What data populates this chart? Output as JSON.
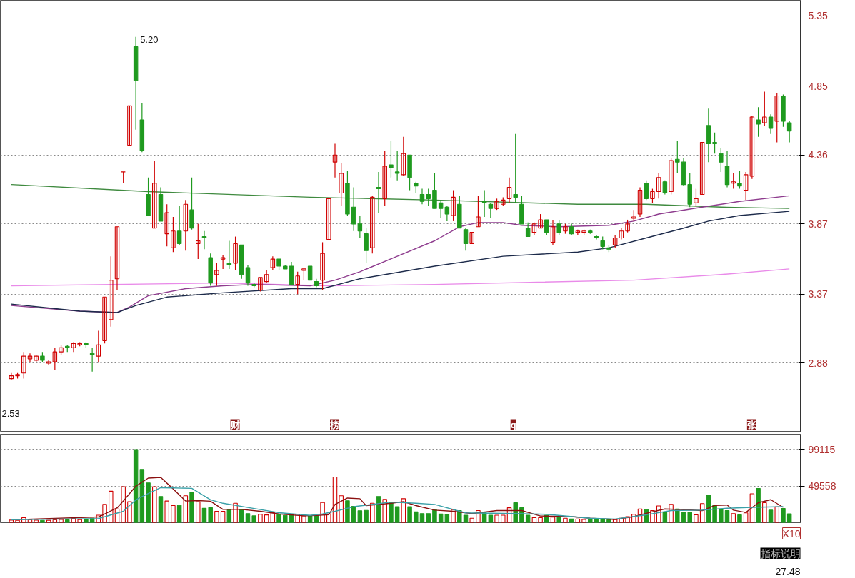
{
  "chart_data": [
    {
      "type": "candlestick",
      "categories": [
        null,
        null,
        null,
        null,
        null,
        null,
        null,
        null,
        null,
        null,
        null,
        null,
        null,
        null,
        null,
        null,
        null,
        null,
        null,
        null,
        null,
        null,
        null,
        null,
        null,
        null,
        null,
        null,
        null,
        null,
        null,
        null,
        null,
        null,
        null,
        null,
        null,
        null,
        null,
        null,
        null,
        null,
        null,
        null,
        null,
        null,
        null,
        null,
        null,
        null,
        null,
        null,
        null,
        null,
        null,
        null,
        null,
        null,
        null,
        null,
        null,
        null,
        null,
        null,
        null,
        null,
        null,
        null,
        null,
        null,
        null,
        null,
        null,
        null,
        null,
        null,
        null,
        null,
        null,
        null,
        null,
        null,
        null,
        null,
        null,
        null,
        null,
        null,
        null,
        null,
        null,
        null,
        null,
        null,
        null,
        null,
        null,
        null,
        null,
        null,
        null,
        null,
        null,
        null,
        null,
        null,
        null,
        null,
        null,
        null,
        null,
        null,
        null,
        null,
        null,
        null,
        null,
        null,
        null,
        null,
        null,
        null,
        null,
        null,
        null,
        null
      ],
      "ohlc": [
        [
          2.77,
          2.81,
          2.76,
          2.79
        ],
        [
          2.79,
          2.81,
          2.77,
          2.8
        ],
        [
          2.81,
          2.96,
          2.77,
          2.93
        ],
        [
          2.91,
          2.95,
          2.89,
          2.93
        ],
        [
          2.9,
          2.94,
          2.89,
          2.93
        ],
        [
          2.93,
          2.96,
          2.89,
          2.9
        ],
        [
          2.88,
          2.9,
          2.87,
          2.89
        ],
        [
          2.89,
          2.99,
          2.83,
          2.96
        ],
        [
          2.96,
          3.01,
          2.94,
          2.99
        ],
        [
          3.0,
          3.01,
          2.96,
          2.99
        ],
        [
          2.99,
          3.03,
          2.96,
          3.02
        ],
        [
          3.01,
          3.03,
          3.0,
          3.02
        ],
        [
          3.02,
          3.03,
          2.99,
          3.01
        ],
        [
          2.95,
          2.99,
          2.82,
          2.94
        ],
        [
          2.93,
          3.11,
          2.89,
          3.01
        ],
        [
          3.04,
          3.35,
          3.02,
          3.35
        ],
        [
          3.19,
          3.64,
          3.14,
          3.47
        ],
        [
          3.48,
          3.85,
          3.4,
          3.85
        ],
        [
          4.24,
          4.24,
          4.16,
          4.24
        ],
        [
          4.43,
          4.71,
          4.43,
          4.71
        ],
        [
          5.13,
          5.2,
          4.54,
          4.89
        ],
        [
          4.61,
          4.73,
          4.38,
          4.39
        ],
        [
          4.08,
          4.2,
          3.93,
          3.93
        ],
        [
          3.84,
          4.32,
          3.84,
          4.16
        ],
        [
          4.08,
          4.13,
          3.89,
          3.89
        ],
        [
          3.8,
          4.01,
          3.71,
          3.95
        ],
        [
          3.7,
          3.92,
          3.67,
          3.82
        ],
        [
          3.82,
          4.0,
          3.72,
          3.73
        ],
        [
          3.82,
          4.04,
          3.68,
          4.01
        ],
        [
          3.97,
          4.2,
          3.83,
          3.84
        ],
        [
          3.73,
          3.87,
          3.62,
          3.75
        ],
        [
          3.78,
          3.82,
          3.69,
          3.77
        ],
        [
          3.63,
          3.66,
          3.43,
          3.45
        ],
        [
          3.51,
          3.59,
          3.43,
          3.54
        ],
        [
          3.62,
          3.65,
          3.55,
          3.63
        ],
        [
          3.59,
          3.75,
          3.55,
          3.58
        ],
        [
          3.59,
          3.78,
          3.54,
          3.73
        ],
        [
          3.72,
          3.72,
          3.48,
          3.51
        ],
        [
          3.56,
          3.58,
          3.43,
          3.45
        ],
        [
          3.44,
          3.45,
          3.42,
          3.43
        ],
        [
          3.4,
          3.49,
          3.39,
          3.49
        ],
        [
          3.46,
          3.54,
          3.45,
          3.51
        ],
        [
          3.56,
          3.64,
          3.54,
          3.62
        ],
        [
          3.62,
          3.62,
          3.54,
          3.57
        ],
        [
          3.57,
          3.58,
          3.55,
          3.55
        ],
        [
          3.57,
          3.6,
          3.44,
          3.44
        ],
        [
          3.44,
          3.53,
          3.37,
          3.5
        ],
        [
          3.54,
          3.55,
          3.47,
          3.55
        ],
        [
          3.57,
          3.57,
          3.47,
          3.47
        ],
        [
          3.46,
          3.48,
          3.42,
          3.43
        ],
        [
          3.47,
          3.74,
          3.4,
          3.66
        ],
        [
          3.76,
          4.05,
          3.76,
          4.05
        ],
        [
          4.31,
          4.44,
          4.2,
          4.36
        ],
        [
          4.09,
          4.3,
          4.0,
          4.23
        ],
        [
          4.16,
          4.25,
          3.93,
          3.94
        ],
        [
          3.99,
          4.13,
          3.82,
          3.87
        ],
        [
          3.87,
          3.93,
          3.77,
          3.82
        ],
        [
          3.8,
          3.84,
          3.59,
          3.68
        ],
        [
          3.7,
          4.07,
          3.66,
          4.06
        ],
        [
          4.13,
          4.24,
          3.95,
          4.12
        ],
        [
          4.05,
          4.39,
          4.0,
          4.28
        ],
        [
          4.29,
          4.46,
          4.2,
          4.27
        ],
        [
          4.24,
          4.39,
          4.18,
          4.23
        ],
        [
          4.22,
          4.49,
          4.21,
          4.37
        ],
        [
          4.36,
          4.36,
          4.11,
          4.2
        ],
        [
          4.16,
          4.17,
          4.09,
          4.14
        ],
        [
          4.08,
          4.12,
          4.01,
          4.03
        ],
        [
          4.08,
          4.12,
          4.0,
          4.05
        ],
        [
          4.11,
          4.23,
          3.98,
          3.98
        ],
        [
          4.02,
          4.04,
          3.91,
          3.98
        ],
        [
          3.99,
          4.0,
          3.89,
          3.94
        ],
        [
          3.93,
          4.11,
          3.89,
          4.06
        ],
        [
          4.01,
          4.07,
          3.84,
          3.84
        ],
        [
          3.83,
          3.84,
          3.68,
          3.73
        ],
        [
          3.73,
          3.81,
          3.73,
          3.81
        ],
        [
          3.85,
          4.07,
          3.85,
          3.92
        ],
        [
          4.03,
          4.11,
          3.92,
          4.02
        ],
        [
          4.01,
          4.02,
          3.91,
          3.98
        ],
        [
          3.98,
          4.05,
          3.97,
          4.03
        ],
        [
          4.01,
          4.06,
          4.0,
          4.04
        ],
        [
          4.05,
          4.2,
          4.02,
          4.13
        ],
        [
          4.08,
          4.51,
          4.02,
          4.06
        ],
        [
          4.01,
          4.07,
          3.87,
          3.87
        ],
        [
          3.84,
          3.88,
          3.78,
          3.78
        ],
        [
          3.81,
          3.88,
          3.79,
          3.87
        ],
        [
          3.84,
          3.94,
          3.84,
          3.9
        ],
        [
          3.9,
          3.9,
          3.79,
          3.81
        ],
        [
          3.74,
          3.9,
          3.72,
          3.85
        ],
        [
          3.87,
          3.9,
          3.79,
          3.81
        ],
        [
          3.82,
          3.87,
          3.8,
          3.85
        ],
        [
          3.85,
          3.87,
          3.79,
          3.8
        ],
        [
          3.81,
          3.83,
          3.79,
          3.82
        ],
        [
          3.81,
          3.83,
          3.79,
          3.82
        ],
        [
          3.82,
          3.83,
          3.8,
          3.81
        ],
        [
          3.78,
          3.79,
          3.76,
          3.77
        ],
        [
          3.75,
          3.78,
          3.69,
          3.71
        ],
        [
          3.7,
          3.72,
          3.67,
          3.69
        ],
        [
          3.72,
          3.79,
          3.7,
          3.77
        ],
        [
          3.77,
          3.84,
          3.76,
          3.82
        ],
        [
          3.82,
          3.9,
          3.81,
          3.87
        ],
        [
          3.91,
          3.97,
          3.89,
          3.92
        ],
        [
          3.94,
          4.13,
          3.92,
          4.11
        ],
        [
          4.16,
          4.18,
          4.04,
          4.05
        ],
        [
          4.05,
          4.12,
          4.02,
          4.1
        ],
        [
          4.1,
          4.23,
          4.05,
          4.2
        ],
        [
          4.17,
          4.18,
          4.08,
          4.09
        ],
        [
          4.1,
          4.34,
          4.08,
          4.32
        ],
        [
          4.33,
          4.46,
          4.23,
          4.31
        ],
        [
          4.31,
          4.34,
          4.14,
          4.15
        ],
        [
          4.15,
          4.23,
          3.99,
          4.01
        ],
        [
          4.02,
          4.12,
          3.99,
          4.05
        ],
        [
          4.08,
          4.45,
          4.08,
          4.45
        ],
        [
          4.57,
          4.69,
          4.31,
          4.44
        ],
        [
          4.45,
          4.52,
          4.37,
          4.44
        ],
        [
          4.37,
          4.41,
          4.24,
          4.31
        ],
        [
          4.28,
          4.39,
          4.13,
          4.15
        ],
        [
          4.16,
          4.23,
          4.12,
          4.17
        ],
        [
          4.16,
          4.25,
          4.12,
          4.14
        ],
        [
          4.11,
          4.24,
          4.04,
          4.22
        ],
        [
          4.21,
          4.64,
          4.19,
          4.63
        ],
        [
          4.61,
          4.7,
          4.49,
          4.58
        ],
        [
          4.59,
          4.81,
          4.57,
          4.63
        ],
        [
          4.63,
          4.65,
          4.51,
          4.55
        ],
        [
          4.6,
          4.8,
          4.45,
          4.78
        ],
        [
          4.78,
          4.79,
          4.56,
          4.6
        ],
        [
          4.59,
          4.6,
          4.45,
          4.53
        ]
      ],
      "colors": [
        "#d00000",
        "#d00000",
        "#d00000",
        "#d00000",
        "#d00000",
        "#1f9a1f",
        "#d00000",
        "#d00000",
        "#d00000",
        "#1f9a1f",
        "#d00000",
        "#d00000",
        "#1f9a1f",
        "#1f9a1f",
        "#d00000",
        "#d00000",
        "#d00000",
        "#d00000",
        "#d00000",
        "#d00000",
        "#1f9a1f",
        "#1f9a1f",
        "#1f9a1f",
        "#d00000",
        "#1f9a1f",
        "#d00000",
        "#d00000",
        "#1f9a1f",
        "#d00000",
        "#1f9a1f",
        "#d00000",
        "#1f9a1f",
        "#1f9a1f",
        "#d00000",
        "#d00000",
        "#1f9a1f",
        "#d00000",
        "#1f9a1f",
        "#1f9a1f",
        "#1f9a1f",
        "#d00000",
        "#d00000",
        "#d00000",
        "#1f9a1f",
        "#1f9a1f",
        "#1f9a1f",
        "#d00000",
        "#d00000",
        "#1f9a1f",
        "#1f9a1f",
        "#d00000",
        "#d00000",
        "#d00000",
        "#d00000",
        "#1f9a1f",
        "#1f9a1f",
        "#1f9a1f",
        "#1f9a1f",
        "#d00000",
        "#1f9a1f",
        "#d00000",
        "#1f9a1f",
        "#1f9a1f",
        "#d00000",
        "#1f9a1f",
        "#1f9a1f",
        "#1f9a1f",
        "#1f9a1f",
        "#1f9a1f",
        "#1f9a1f",
        "#1f9a1f",
        "#d00000",
        "#1f9a1f",
        "#1f9a1f",
        "#d00000",
        "#d00000",
        "#1f9a1f",
        "#1f9a1f",
        "#d00000",
        "#d00000",
        "#d00000",
        "#1f9a1f",
        "#1f9a1f",
        "#1f9a1f",
        "#d00000",
        "#d00000",
        "#1f9a1f",
        "#d00000",
        "#1f9a1f",
        "#d00000",
        "#1f9a1f",
        "#d00000",
        "#d00000",
        "#1f9a1f",
        "#1f9a1f",
        "#1f9a1f",
        "#1f9a1f",
        "#d00000",
        "#d00000",
        "#d00000",
        "#d00000",
        "#d00000",
        "#1f9a1f",
        "#d00000",
        "#d00000",
        "#1f9a1f",
        "#d00000",
        "#1f9a1f",
        "#1f9a1f",
        "#1f9a1f",
        "#d00000",
        "#d00000",
        "#1f9a1f",
        "#1f9a1f",
        "#1f9a1f",
        "#1f9a1f",
        "#d00000",
        "#1f9a1f",
        "#d00000",
        "#d00000",
        "#1f9a1f",
        "#d00000",
        "#1f9a1f",
        "#d00000",
        "#1f9a1f",
        "#1f9a1f"
      ],
      "series": [
        {
          "type": "line",
          "color": "#3f8a3f",
          "values": [
            4.15,
            null,
            null,
            null,
            null,
            null,
            null,
            null,
            null,
            null,
            null,
            null,
            null,
            null,
            null,
            null,
            null,
            null,
            null,
            null,
            null,
            null,
            4.1,
            null,
            null,
            null,
            null,
            null,
            null,
            null,
            null,
            null,
            null,
            null,
            null,
            null,
            null,
            null,
            null,
            null,
            null,
            null,
            null,
            null,
            null,
            null,
            null,
            null,
            4.06,
            null,
            null,
            null,
            null,
            null,
            null,
            null,
            null,
            null,
            null,
            null,
            null,
            null,
            null,
            null,
            null,
            null,
            null,
            null,
            4.04,
            null,
            null,
            null,
            null,
            null,
            null,
            null,
            null,
            null,
            null,
            null,
            null,
            null,
            null,
            null,
            null,
            null,
            null,
            null,
            null,
            null,
            null,
            4.01,
            null,
            null,
            null,
            null,
            null,
            null,
            null,
            null,
            null,
            null,
            4.01,
            null,
            null,
            null,
            null,
            null,
            null,
            null,
            null,
            null,
            null,
            null,
            3.99,
            null,
            null,
            null,
            null,
            null,
            null,
            null,
            null,
            null,
            null,
            3.98
          ]
        },
        {
          "type": "line",
          "color": "#e98be9",
          "values": [
            3.43,
            null,
            null,
            null,
            null,
            null,
            null,
            null,
            null,
            null,
            null,
            null,
            null,
            null,
            null,
            null,
            null,
            null,
            null,
            null,
            null,
            null,
            null,
            null,
            null,
            null,
            null,
            null,
            null,
            null,
            null,
            null,
            null,
            null,
            3.45,
            null,
            null,
            null,
            null,
            null,
            null,
            null,
            null,
            null,
            null,
            null,
            null,
            null,
            null,
            null,
            null,
            3.43,
            null,
            null,
            null,
            null,
            null,
            null,
            null,
            null,
            null,
            null,
            null,
            null,
            null,
            null,
            null,
            null,
            3.44,
            null,
            null,
            null,
            null,
            null,
            null,
            null,
            null,
            null,
            null,
            null,
            null,
            null,
            null,
            null,
            null,
            null,
            null,
            null,
            null,
            null,
            null,
            null,
            null,
            null,
            null,
            null,
            null,
            null,
            null,
            null,
            3.47,
            null,
            null,
            null,
            null,
            null,
            null,
            null,
            null,
            null,
            null,
            null,
            null,
            null,
            3.51,
            null,
            null,
            null,
            null,
            null,
            null,
            null,
            null,
            null,
            null,
            3.55
          ]
        },
        {
          "type": "line",
          "color": "#8e3c8e",
          "values": [
            3.29,
            null,
            null,
            null,
            null,
            null,
            null,
            null,
            null,
            null,
            null,
            3.25,
            null,
            null,
            null,
            null,
            null,
            3.24,
            null,
            3.28,
            null,
            null,
            3.36,
            null,
            null,
            null,
            null,
            null,
            3.41,
            null,
            null,
            null,
            null,
            null,
            3.43,
            null,
            null,
            null,
            null,
            3.44,
            null,
            null,
            null,
            null,
            null,
            null,
            null,
            null,
            3.43,
            null,
            null,
            null,
            3.47,
            null,
            null,
            null,
            3.53,
            null,
            null,
            null,
            null,
            null,
            3.64,
            null,
            null,
            null,
            null,
            null,
            3.75,
            null,
            null,
            null,
            3.85,
            null,
            null,
            3.88,
            null,
            null,
            null,
            3.88,
            null,
            null,
            3.86,
            null,
            null,
            null,
            null,
            null,
            3.85,
            null,
            null,
            null,
            null,
            null,
            null,
            null,
            3.86,
            null,
            null,
            null,
            3.89,
            null,
            null,
            null,
            3.94,
            null,
            null,
            null,
            null,
            null,
            null,
            3.99,
            null,
            null,
            null,
            null,
            null,
            4.03,
            null,
            null,
            null,
            null,
            null,
            null,
            null,
            4.07
          ]
        },
        {
          "type": "line",
          "color": "#1c2a4a",
          "values": [
            3.3,
            null,
            null,
            null,
            null,
            null,
            null,
            null,
            null,
            null,
            null,
            3.25,
            null,
            null,
            null,
            null,
            null,
            3.24,
            null,
            null,
            3.29,
            null,
            null,
            null,
            null,
            3.35,
            null,
            null,
            null,
            null,
            null,
            null,
            null,
            null,
            3.38,
            null,
            null,
            null,
            null,
            null,
            null,
            null,
            null,
            null,
            null,
            3.41,
            null,
            null,
            null,
            null,
            3.41,
            null,
            null,
            null,
            null,
            null,
            3.48,
            null,
            null,
            null,
            null,
            null,
            null,
            null,
            null,
            null,
            null,
            null,
            3.57,
            null,
            null,
            null,
            null,
            null,
            null,
            null,
            null,
            null,
            null,
            3.64,
            null,
            null,
            null,
            null,
            null,
            null,
            null,
            null,
            null,
            null,
            null,
            3.67,
            null,
            null,
            null,
            null,
            3.7,
            null,
            null,
            null,
            null,
            null,
            3.77,
            null,
            null,
            null,
            null,
            null,
            3.84,
            null,
            null,
            null,
            3.89,
            null,
            null,
            null,
            null,
            3.93,
            null,
            null,
            null,
            null,
            null,
            null,
            null,
            3.96
          ]
        }
      ],
      "ylim": [
        2.39,
        5.46
      ],
      "yticks": [
        2.88,
        3.37,
        3.87,
        4.36,
        4.85,
        5.35
      ],
      "grid": "y",
      "tick_labels": "y",
      "annotations": [
        "5.20",
        "2.53",
        "财",
        "榜",
        "q",
        "张"
      ]
    },
    {
      "type": "bar",
      "categories": [
        null,
        null,
        null,
        null,
        null,
        null,
        null,
        null,
        null,
        null,
        null,
        null,
        null,
        null,
        null,
        null,
        null,
        null,
        null,
        null,
        null,
        null,
        null,
        null,
        null,
        null,
        null,
        null,
        null,
        null,
        null,
        null,
        null,
        null,
        null,
        null,
        null,
        null,
        null,
        null,
        null,
        null,
        null,
        null,
        null,
        null,
        null,
        null,
        null,
        null,
        null,
        null,
        null,
        null,
        null,
        null,
        null,
        null,
        null,
        null,
        null,
        null,
        null,
        null,
        null,
        null,
        null,
        null,
        null,
        null,
        null,
        null,
        null,
        null,
        null,
        null,
        null,
        null,
        null,
        null,
        null,
        null,
        null,
        null,
        null,
        null,
        null,
        null,
        null,
        null,
        null,
        null,
        null,
        null,
        null,
        null,
        null,
        null,
        null,
        null,
        null,
        null,
        null,
        null,
        null,
        null,
        null,
        null,
        null,
        null,
        null,
        null,
        null,
        null,
        null,
        null,
        null,
        null,
        null,
        null,
        null,
        null,
        null,
        null,
        null,
        null
      ],
      "values": [
        3500,
        3200,
        6800,
        4000,
        3500,
        3200,
        3300,
        3800,
        4500,
        3900,
        5900,
        4200,
        4500,
        5900,
        10200,
        24800,
        42700,
        18600,
        48900,
        28500,
        99000,
        72200,
        53900,
        48900,
        35600,
        29400,
        23200,
        23500,
        36500,
        41500,
        28500,
        19500,
        20400,
        15500,
        15500,
        17300,
        26300,
        18000,
        12400,
        9300,
        11500,
        10500,
        13600,
        10800,
        9900,
        10500,
        11500,
        9300,
        9300,
        9900,
        27300,
        11800,
        61900,
        36500,
        29700,
        22300,
        16100,
        16700,
        26300,
        35600,
        31600,
        27900,
        21700,
        32500,
        21700,
        14600,
        12400,
        12400,
        17700,
        11700,
        11400,
        17700,
        16400,
        10100,
        6000,
        16400,
        13900,
        10100,
        10100,
        10100,
        20200,
        27100,
        20200,
        10100,
        6900,
        6900,
        10100,
        7600,
        8200,
        6000,
        5000,
        5000,
        4400,
        5000,
        5000,
        5000,
        3800,
        4400,
        6000,
        8200,
        11400,
        18600,
        17700,
        16400,
        22700,
        13900,
        24900,
        18600,
        14500,
        14500,
        10700,
        25900,
        36900,
        24000,
        18600,
        16400,
        12300,
        10700,
        13300,
        39100,
        46400,
        27100,
        17000,
        21500,
        19300,
        12000
      ],
      "series": [
        {
          "type": "line",
          "color": "#8b1010",
          "values": [
            4000,
            null,
            null,
            null,
            null,
            null,
            null,
            null,
            null,
            null,
            null,
            null,
            null,
            null,
            7700,
            null,
            null,
            20100,
            29400,
            null,
            49500,
            null,
            60400,
            null,
            61300,
            null,
            45800,
            null,
            29400,
            null,
            30000,
            null,
            29100,
            null,
            18000,
            null,
            null,
            18000,
            null,
            null,
            15500,
            null,
            null,
            11800,
            null,
            null,
            null,
            9300,
            null,
            9900,
            null,
            10800,
            24800,
            null,
            33400,
            null,
            32500,
            23200,
            null,
            null,
            null,
            26300,
            null,
            28500,
            null,
            23200,
            null,
            null,
            17000,
            null,
            null,
            15500,
            null,
            null,
            12300,
            null,
            null,
            null,
            16400,
            null,
            null,
            null,
            16400,
            null,
            null,
            9100,
            null,
            null,
            null,
            null,
            8200,
            null,
            null,
            6000,
            null,
            null,
            null,
            4400,
            null,
            null,
            8200,
            null,
            null,
            14800,
            null,
            18600,
            null,
            null,
            17700,
            null,
            null,
            16400,
            null,
            23400,
            null,
            24000,
            17000,
            null,
            13900,
            null,
            27100,
            null,
            31200,
            null,
            20800,
            null
          ]
        },
        {
          "type": "line",
          "color": "#3aa0a8",
          "values": [
            4000,
            null,
            null,
            null,
            null,
            null,
            null,
            null,
            null,
            null,
            null,
            null,
            null,
            null,
            5600,
            null,
            null,
            null,
            15500,
            null,
            31000,
            null,
            39600,
            null,
            47400,
            null,
            47100,
            null,
            null,
            46500,
            null,
            null,
            31000,
            null,
            26300,
            null,
            null,
            null,
            null,
            19200,
            null,
            null,
            null,
            13600,
            null,
            null,
            null,
            null,
            9900,
            null,
            11800,
            null,
            15500,
            null,
            null,
            21700,
            null,
            null,
            null,
            null,
            null,
            27900,
            null,
            null,
            null,
            26300,
            null,
            null,
            24800,
            null,
            null,
            null,
            null,
            13300,
            null,
            null,
            null,
            null,
            null,
            null,
            null,
            12300,
            null,
            null,
            null,
            null,
            11400,
            null,
            null,
            null,
            null,
            null,
            null,
            6000,
            null,
            null,
            null,
            5000,
            null,
            null,
            null,
            null,
            10700,
            null,
            null,
            null,
            16400,
            null,
            null,
            null,
            null,
            17000,
            null,
            null,
            null,
            19600,
            null,
            null,
            null,
            20800,
            null,
            null,
            null,
            null,
            21800,
            null
          ]
        }
      ],
      "colors": [
        "#d00000",
        "#d00000",
        "#d00000",
        "#d00000",
        "#d00000",
        "#1f9a1f",
        "#d00000",
        "#d00000",
        "#d00000",
        "#1f9a1f",
        "#d00000",
        "#d00000",
        "#1f9a1f",
        "#1f9a1f",
        "#d00000",
        "#d00000",
        "#d00000",
        "#d00000",
        "#d00000",
        "#d00000",
        "#1f9a1f",
        "#1f9a1f",
        "#1f9a1f",
        "#d00000",
        "#1f9a1f",
        "#d00000",
        "#d00000",
        "#1f9a1f",
        "#d00000",
        "#1f9a1f",
        "#d00000",
        "#1f9a1f",
        "#1f9a1f",
        "#d00000",
        "#d00000",
        "#1f9a1f",
        "#d00000",
        "#1f9a1f",
        "#1f9a1f",
        "#1f9a1f",
        "#d00000",
        "#d00000",
        "#d00000",
        "#1f9a1f",
        "#1f9a1f",
        "#1f9a1f",
        "#d00000",
        "#d00000",
        "#1f9a1f",
        "#1f9a1f",
        "#d00000",
        "#d00000",
        "#d00000",
        "#d00000",
        "#1f9a1f",
        "#1f9a1f",
        "#1f9a1f",
        "#1f9a1f",
        "#d00000",
        "#1f9a1f",
        "#d00000",
        "#1f9a1f",
        "#1f9a1f",
        "#d00000",
        "#1f9a1f",
        "#1f9a1f",
        "#1f9a1f",
        "#1f9a1f",
        "#1f9a1f",
        "#1f9a1f",
        "#1f9a1f",
        "#d00000",
        "#1f9a1f",
        "#1f9a1f",
        "#d00000",
        "#d00000",
        "#1f9a1f",
        "#1f9a1f",
        "#d00000",
        "#d00000",
        "#d00000",
        "#1f9a1f",
        "#1f9a1f",
        "#1f9a1f",
        "#d00000",
        "#d00000",
        "#1f9a1f",
        "#d00000",
        "#1f9a1f",
        "#d00000",
        "#1f9a1f",
        "#d00000",
        "#d00000",
        "#1f9a1f",
        "#1f9a1f",
        "#1f9a1f",
        "#1f9a1f",
        "#d00000",
        "#d00000",
        "#d00000",
        "#d00000",
        "#d00000",
        "#1f9a1f",
        "#d00000",
        "#d00000",
        "#1f9a1f",
        "#d00000",
        "#1f9a1f",
        "#1f9a1f",
        "#1f9a1f",
        "#d00000",
        "#d00000",
        "#1f9a1f",
        "#1f9a1f",
        "#1f9a1f",
        "#1f9a1f",
        "#d00000",
        "#1f9a1f",
        "#d00000",
        "#d00000",
        "#1f9a1f",
        "#d00000",
        "#1f9a1f",
        "#d00000",
        "#1f9a1f",
        "#1f9a1f"
      ],
      "ylim": [
        0,
        119900
      ],
      "yticks": [
        49558,
        99115
      ],
      "grid": "y",
      "tick_labels": "y",
      "annotations": [
        "X10",
        "指标说明",
        "27.48"
      ]
    }
  ]
}
